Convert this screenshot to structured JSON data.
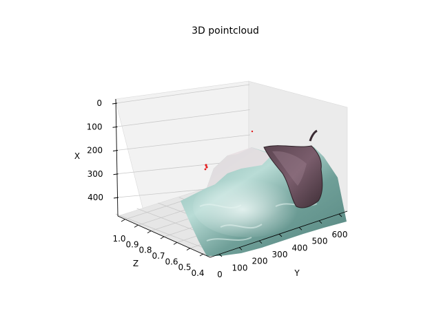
{
  "chart_data": {
    "type": "scatter",
    "projection": "3d",
    "title": "3D pointcloud",
    "axes": {
      "x": {
        "label": "X",
        "ticks": [
          "0",
          "100",
          "200",
          "300",
          "400"
        ],
        "range": [
          0,
          480
        ]
      },
      "y": {
        "label": "Y",
        "ticks": [
          "0",
          "100",
          "200",
          "300",
          "400",
          "500",
          "600"
        ],
        "range": [
          0,
          640
        ]
      },
      "z": {
        "label": "Z",
        "ticks": [
          "1.0",
          "0.9",
          "0.8",
          "0.7",
          "0.6",
          "0.5",
          "0.4"
        ],
        "range": [
          0.35,
          1.0
        ]
      }
    },
    "grid": true,
    "legend": "none",
    "series": [
      {
        "type": "surface-pointcloud",
        "colors": [
          "#9fc6bf",
          "#6e9f99",
          "#d9ecea",
          "#4a3740",
          "#7d6070",
          "#b8a0a8"
        ]
      },
      {
        "type": "outlier-points",
        "color": "#e31a1c"
      }
    ]
  }
}
